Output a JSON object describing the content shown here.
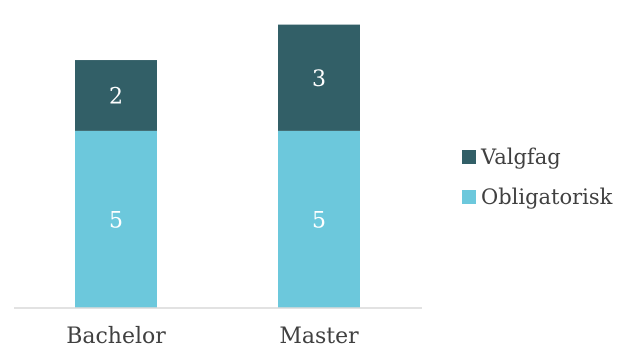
{
  "chart_data": {
    "type": "bar",
    "stacked": true,
    "categories": [
      "Bachelor",
      "Master"
    ],
    "series": [
      {
        "name": "Obligatorisk",
        "values": [
          5,
          5
        ],
        "color": "#6cc8dc"
      },
      {
        "name": "Valgfag",
        "values": [
          2,
          3
        ],
        "color": "#325f67"
      }
    ],
    "title": "",
    "xlabel": "",
    "ylabel": "",
    "ylim": [
      0,
      8.3
    ],
    "grid": false,
    "legend": "right",
    "data_labels": true,
    "axis_color": "#d9d9d9",
    "text_color": "#404040"
  }
}
